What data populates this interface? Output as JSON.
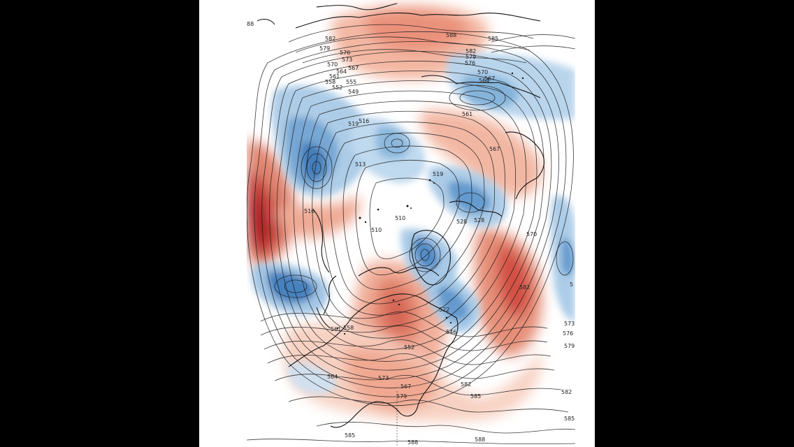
{
  "map": {
    "field": "500 hPa geopotential height (dam) with anomaly shading",
    "colors": {
      "background_outer": "#000000",
      "frame": "#ffffff",
      "warm_strong": "#b4181e",
      "warm_mid": "#e07a62",
      "warm_light": "#f6c6b4",
      "cold_strong": "#2e6fb2",
      "cold_mid": "#79acd8",
      "cold_light": "#c8def0",
      "contour": "#1a1a1a",
      "coast": "#111111"
    },
    "contour_labels": [
      {
        "id": "l1",
        "text": "588"
      },
      {
        "id": "l2",
        "text": "582"
      },
      {
        "id": "l3",
        "text": "579"
      },
      {
        "id": "l4",
        "text": "576"
      },
      {
        "id": "l5",
        "text": "573"
      },
      {
        "id": "l6",
        "text": "570"
      },
      {
        "id": "l7",
        "text": "567"
      },
      {
        "id": "l8",
        "text": "564"
      },
      {
        "id": "l9",
        "text": "561"
      },
      {
        "id": "l10",
        "text": "558"
      },
      {
        "id": "l11",
        "text": "555"
      },
      {
        "id": "l12",
        "text": "552"
      },
      {
        "id": "l13",
        "text": "549"
      },
      {
        "id": "l14",
        "text": "519"
      },
      {
        "id": "l15",
        "text": "516"
      },
      {
        "id": "l16",
        "text": "513"
      },
      {
        "id": "l17",
        "text": "510"
      },
      {
        "id": "l18",
        "text": "510"
      },
      {
        "id": "l19",
        "text": "528"
      },
      {
        "id": "l20",
        "text": "585"
      },
      {
        "id": "l21",
        "text": "588"
      },
      {
        "id": "l22",
        "text": "582"
      },
      {
        "id": "l23",
        "text": "579"
      },
      {
        "id": "l24",
        "text": "576"
      },
      {
        "id": "l25",
        "text": "570"
      },
      {
        "id": "l26",
        "text": "567"
      },
      {
        "id": "l27",
        "text": "564"
      },
      {
        "id": "l28",
        "text": "561"
      },
      {
        "id": "l29",
        "text": "567"
      },
      {
        "id": "l30",
        "text": "570"
      },
      {
        "id": "l31",
        "text": "582"
      },
      {
        "id": "l32",
        "text": "573"
      },
      {
        "id": "l33",
        "text": "576"
      },
      {
        "id": "l34",
        "text": "579"
      },
      {
        "id": "l35",
        "text": "582"
      },
      {
        "id": "l36",
        "text": "585"
      },
      {
        "id": "l37",
        "text": "585"
      },
      {
        "id": "l38",
        "text": "588"
      },
      {
        "id": "l39",
        "text": "588"
      },
      {
        "id": "l40",
        "text": "585"
      },
      {
        "id": "l41",
        "text": "582"
      },
      {
        "id": "l42",
        "text": "579"
      },
      {
        "id": "l43",
        "text": "573"
      },
      {
        "id": "l44",
        "text": "567"
      },
      {
        "id": "l45",
        "text": "564"
      },
      {
        "id": "l46",
        "text": "561"
      },
      {
        "id": "l47",
        "text": "558"
      },
      {
        "id": "l48",
        "text": "552"
      },
      {
        "id": "l49",
        "text": "546"
      },
      {
        "id": "l50",
        "text": "528"
      },
      {
        "id": "l51",
        "text": "522"
      },
      {
        "id": "l52",
        "text": "516"
      },
      {
        "id": "l53",
        "text": "519"
      },
      {
        "id": "l54",
        "text": "88"
      },
      {
        "id": "l55",
        "text": "5"
      }
    ]
  }
}
